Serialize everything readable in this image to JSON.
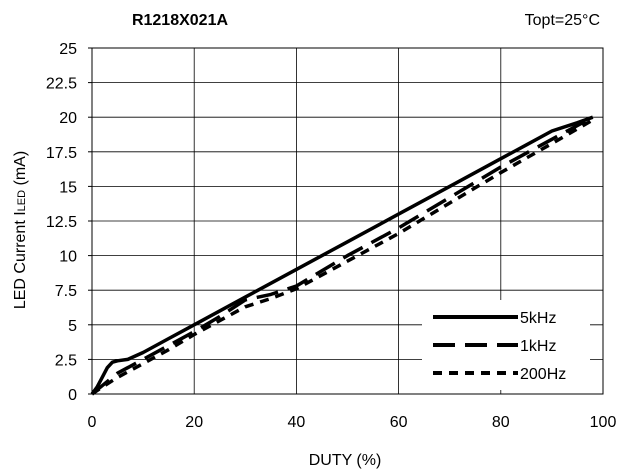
{
  "chart_data": {
    "type": "line",
    "title": "R1218X021A",
    "annotation": "Topt=25°C",
    "xlabel": "DUTY (%)",
    "ylabel": "LED Current ILED (mA)",
    "ylabel_main": "LED Current I",
    "ylabel_sub": "LED",
    "ylabel_unit": " (mA)",
    "xlim": [
      0,
      100
    ],
    "ylim": [
      0,
      25
    ],
    "xticks": [
      "0",
      "20",
      "40",
      "60",
      "80",
      "100"
    ],
    "yticks": [
      "0",
      "2.5",
      "5",
      "7.5",
      "10",
      "12.5",
      "15",
      "17.5",
      "20",
      "22.5",
      "25"
    ],
    "grid": true,
    "legend_position": "bottom-right",
    "series": [
      {
        "name": "5kHz",
        "dash": "solid",
        "x": [
          0,
          1,
          2,
          3,
          4,
          5,
          7,
          10,
          15,
          20,
          30,
          40,
          50,
          60,
          70,
          80,
          85,
          90,
          95,
          98
        ],
        "y": [
          0,
          0.5,
          1.2,
          1.9,
          2.3,
          2.4,
          2.5,
          3.0,
          4.0,
          5.0,
          7.0,
          9.0,
          11.0,
          13.0,
          15.0,
          17.0,
          18.0,
          19.0,
          19.6,
          20.0
        ]
      },
      {
        "name": "1kHz",
        "dash": "long-dash",
        "x": [
          0,
          2,
          5,
          10,
          15,
          20,
          25,
          30,
          35,
          40,
          50,
          60,
          70,
          80,
          90,
          98
        ],
        "y": [
          0,
          0.6,
          1.5,
          2.5,
          3.5,
          4.5,
          5.6,
          6.8,
          7.2,
          7.8,
          10.0,
          12.0,
          14.2,
          16.4,
          18.4,
          20.0
        ]
      },
      {
        "name": "200Hz",
        "dash": "dotted",
        "x": [
          0,
          2,
          5,
          10,
          15,
          20,
          25,
          30,
          35,
          40,
          50,
          60,
          70,
          80,
          90,
          98
        ],
        "y": [
          0,
          0.5,
          1.2,
          2.2,
          3.2,
          4.3,
          5.3,
          6.3,
          6.9,
          7.6,
          9.6,
          11.6,
          13.8,
          16.0,
          18.1,
          19.8
        ]
      }
    ]
  }
}
